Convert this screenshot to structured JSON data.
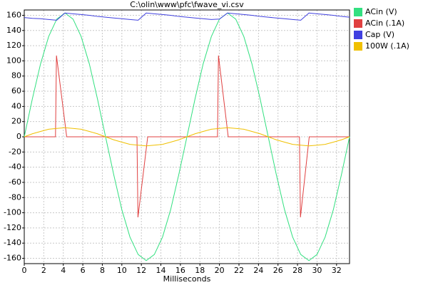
{
  "chart_data": {
    "type": "line",
    "title": "C:\\olin\\www\\pfc\\fwave_vi.csv",
    "x_label": "Milliseconds",
    "x": [
      0,
      0.83,
      1.67,
      2.5,
      3.33,
      4.17,
      5,
      5.83,
      6.67,
      7.5,
      8.33,
      9.17,
      10,
      10.83,
      11.67,
      12.5,
      13.33,
      14.17,
      15,
      15.83,
      16.67,
      17.5,
      18.33,
      19.17,
      20,
      20.83,
      21.67,
      22.5,
      23.33,
      24.17,
      25,
      25.83,
      26.67,
      27.5,
      28.33,
      29.17,
      30,
      30.83,
      31.67,
      32.5,
      33.33
    ],
    "series": [
      {
        "name": "ACin (V)",
        "color": "#33e080",
        "values": [
          0,
          50,
          96,
          132,
          155,
          163,
          155,
          132,
          96,
          50,
          0,
          -50,
          -96,
          -132,
          -155,
          -163,
          -155,
          -132,
          -96,
          -50,
          0,
          50,
          96,
          132,
          155,
          163,
          155,
          132,
          96,
          50,
          0,
          -50,
          -96,
          -132,
          -155,
          -163,
          -155,
          -132,
          -96,
          -50,
          0
        ]
      },
      {
        "name": "ACin (.1A)",
        "color": "#e04040",
        "x": [
          0,
          3.2,
          3.3,
          4.35,
          11.55,
          11.65,
          12.65,
          19.8,
          19.9,
          20.9,
          28.2,
          28.3,
          29.2,
          33.33
        ],
        "values": [
          0,
          0,
          107,
          0,
          0,
          -106,
          0,
          0,
          107,
          0,
          0,
          -106,
          0,
          0
        ]
      },
      {
        "name": "Cap (V)",
        "color": "#4040e0",
        "values": [
          157,
          156,
          155.5,
          154.5,
          153.5,
          163,
          162,
          161,
          160,
          158.5,
          157.5,
          156.5,
          155.5,
          154.5,
          153.5,
          163,
          162,
          161,
          160,
          158.5,
          157.5,
          156.5,
          155.5,
          154.5,
          155,
          163,
          162,
          161,
          160,
          158.5,
          157.5,
          156.5,
          155.5,
          154.5,
          153.5,
          163,
          162,
          161,
          160,
          158.5,
          157.5
        ]
      },
      {
        "name": "100W (.1A)",
        "color": "#f0c000",
        "values": [
          0,
          4,
          7,
          10,
          11,
          12,
          11,
          10,
          7,
          4,
          0,
          -4,
          -7,
          -10,
          -11,
          -12,
          -11,
          -10,
          -7,
          -4,
          0,
          4,
          7,
          10,
          11,
          12,
          11,
          10,
          7,
          4,
          0,
          -4,
          -7,
          -10,
          -11,
          -12,
          -11,
          -10,
          -7,
          -4,
          0
        ]
      }
    ],
    "xlim": [
      0,
      33.33
    ],
    "ylim": [
      -167,
      167
    ],
    "xticks": [
      0,
      2,
      4,
      6,
      8,
      10,
      12,
      14,
      16,
      18,
      20,
      22,
      24,
      26,
      28,
      30,
      32
    ],
    "yticks": [
      -160,
      -140,
      -120,
      -100,
      -80,
      -60,
      -40,
      -20,
      0,
      20,
      40,
      60,
      80,
      100,
      120,
      140,
      160
    ],
    "grid": true
  }
}
